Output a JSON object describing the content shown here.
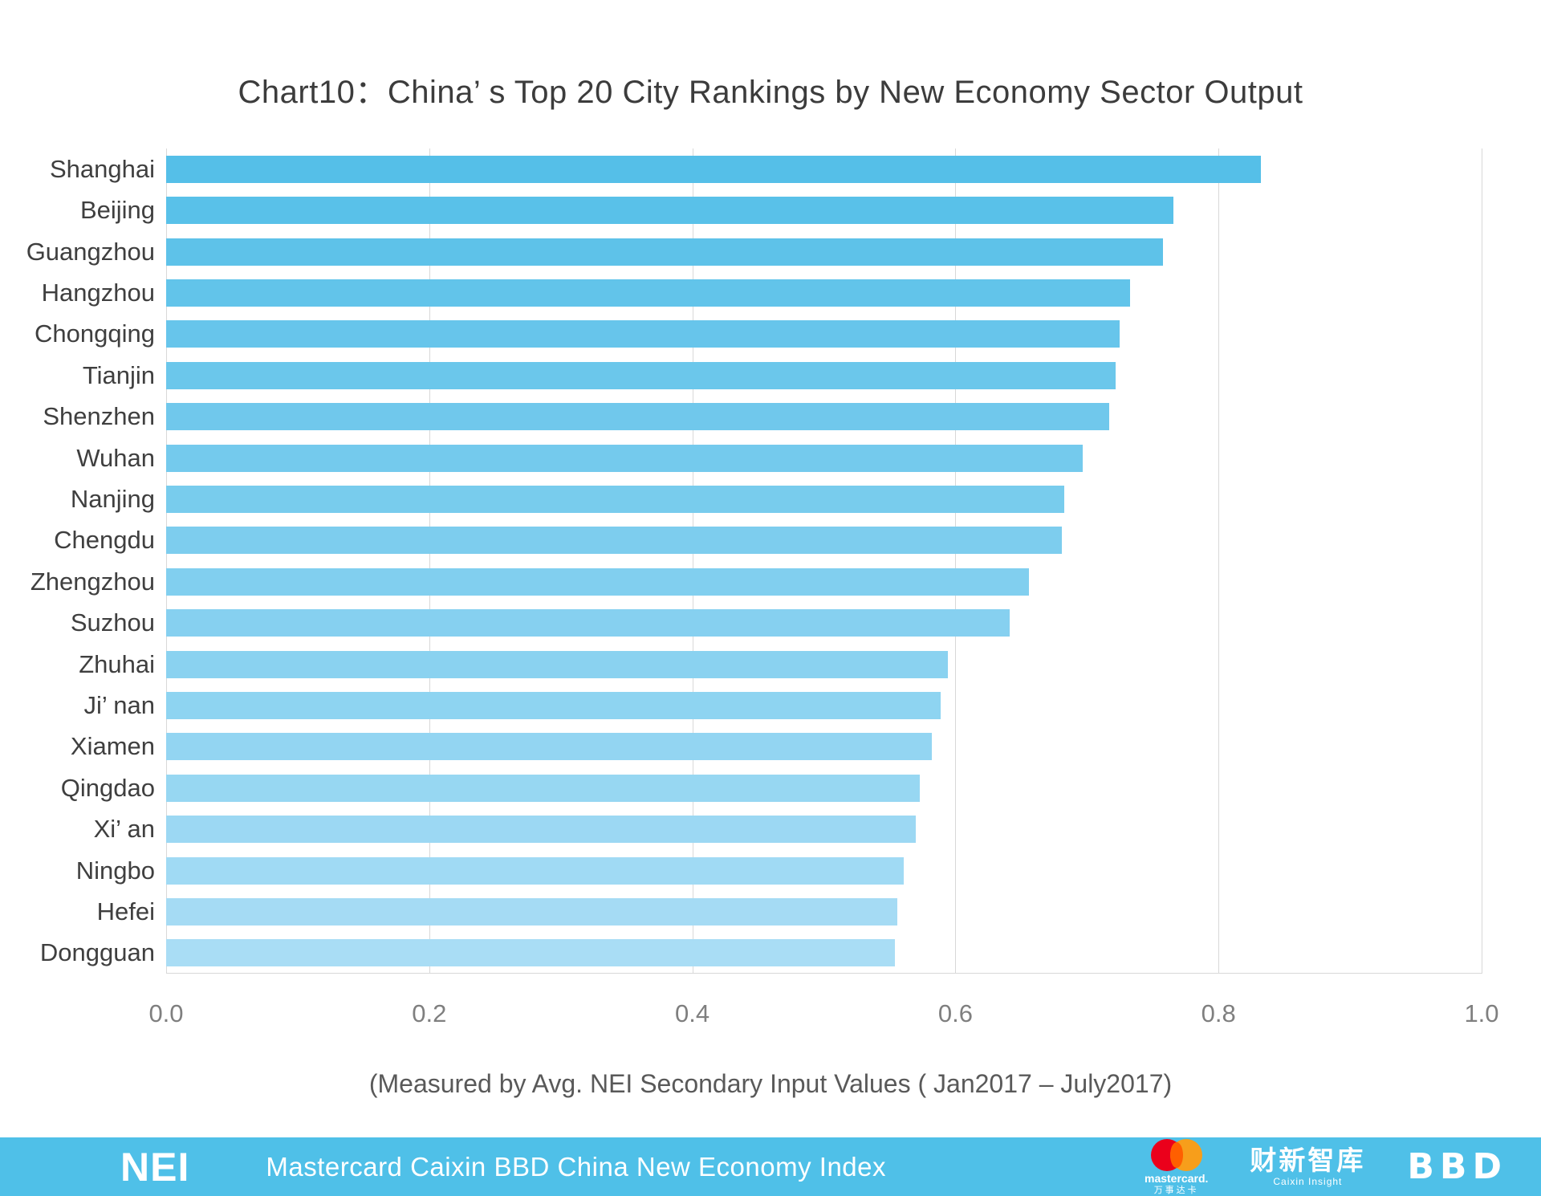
{
  "page": {
    "background": "#FFFFFF"
  },
  "chart_data": {
    "type": "bar",
    "orientation": "horizontal",
    "title": "Chart10：China’ s Top 20 City Rankings by New Economy Sector Output",
    "subtitle": "(Measured by Avg. NEI Secondary Input Values ( Jan2017 – July2017)",
    "categories": [
      "Shanghai",
      "Beijing",
      "Guangzhou",
      "Hangzhou",
      "Chongqing",
      "Tianjin",
      "Shenzhen",
      "Wuhan",
      "Nanjing",
      "Chengdu",
      "Zhengzhou",
      "Suzhou",
      "Zhuhai",
      "Ji’ nan",
      "Xiamen",
      "Qingdao",
      "Xi’ an",
      "Ningbo",
      "Hefei",
      "Dongguan"
    ],
    "values": [
      0.832,
      0.766,
      0.758,
      0.733,
      0.725,
      0.722,
      0.717,
      0.697,
      0.683,
      0.681,
      0.656,
      0.641,
      0.594,
      0.589,
      0.582,
      0.573,
      0.57,
      0.561,
      0.556,
      0.554
    ],
    "xlabel": "",
    "ylabel": "",
    "xlim": [
      0.0,
      1.0
    ],
    "xticks": [
      0.0,
      0.2,
      0.4,
      0.6,
      0.8,
      1.0
    ],
    "xtick_labels": [
      "0.0",
      "0.2",
      "0.4",
      "0.6",
      "0.8",
      "1.0"
    ],
    "grid": true,
    "legend": "none",
    "colors": {
      "bar_top": "#55BFE8",
      "bar_bottom": "#A9DDF5",
      "gridline": "#D8D8D8"
    }
  },
  "footer": {
    "background": "#4FC0E8",
    "nei_logo": "NEI",
    "index_name": "Mastercard Caixin BBD China New Economy Index",
    "logos": {
      "mastercard": {
        "label": "mastercard.",
        "sublabel": "万事达卡",
        "circle_left_color": "#EB001B",
        "circle_right_color": "#F79E1B",
        "overlap_color": "#FF5F00"
      },
      "caixin": {
        "label": "财新智库",
        "sublabel": "Caixin Insight"
      },
      "bbd": {
        "label": "BBD"
      }
    }
  }
}
